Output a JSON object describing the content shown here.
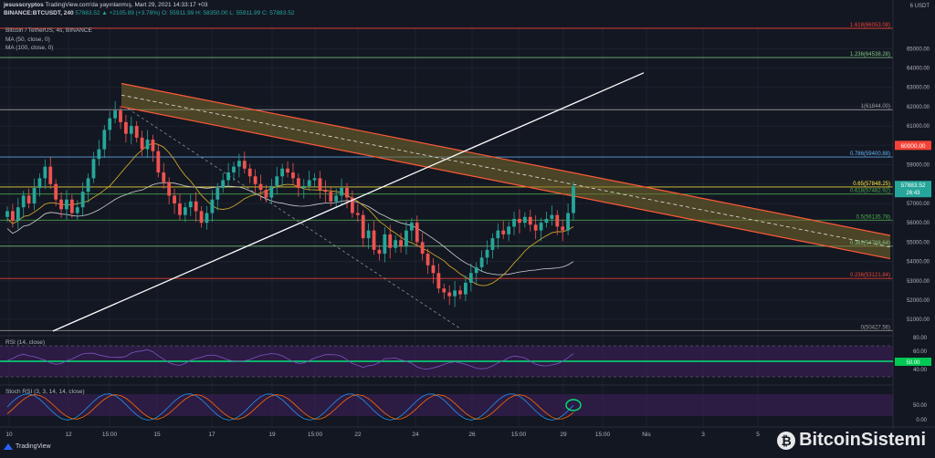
{
  "header": {
    "user": "jesusscryptos",
    "published": "TradingView.com'da yayınlanmış, Mart 29, 2021 14:33:17 +03",
    "symbol": "BINANCE:BTCUSDT, 240",
    "close_change": "57883.52 ▲ +2105.89 (+3.78%)",
    "ohlc": "O: 55911.99  H: 58350.00  L: 55911.99  C: 57883.52"
  },
  "legend": {
    "title": "Bitcoin / TetherUS, 4s, BINANCE",
    "ma50": "MA (50, close, 0)",
    "ma100": "MA (100, close, 0)"
  },
  "price_axis": {
    "unit": "USDT",
    "ticks": [
      "65000.00",
      "64000.00",
      "63000.00",
      "62000.00",
      "61000.00",
      "60000.00",
      "59000.00",
      "58000.00",
      "57000.00",
      "56000.00",
      "55000.00",
      "54000.00",
      "53000.00",
      "52000.00",
      "51000.00"
    ],
    "top_label": "6 USDT"
  },
  "price_badges": {
    "level": "60000.00",
    "current": "57883.52",
    "countdown": "26:43"
  },
  "fib_labels": {
    "f1618": "1.618(66053.08)",
    "f1236": "1.236(64538.28)",
    "f1": "1(61844.00)",
    "f786": "0.786(59400.88)",
    "f65": "0.65(57848.25)",
    "f618": "0.618(57482.92)",
    "f5": "0.5(56135.78)",
    "f382": "0.382(54788.64)",
    "f236": "0.236(53121.84)",
    "f0": "0(50427.56)"
  },
  "rsi": {
    "label": "RSI (14, close)",
    "ticks": [
      "80.00",
      "60.00",
      "40.00"
    ],
    "badge": "50.00"
  },
  "stoch": {
    "label": "Stoch RSI (3, 3, 14, 14, close)",
    "ticks": [
      "50.00",
      "0.00"
    ]
  },
  "time_axis": [
    "10",
    "12",
    "15:00",
    "15",
    "17",
    "19",
    "15:00",
    "22",
    "24",
    "26",
    "15:00",
    "29",
    "15:00",
    "Nis",
    "3",
    "5"
  ],
  "footer": {
    "logo_text": "TradingView",
    "watermark": "BitcoinSistemi"
  },
  "colors": {
    "bg": "#131722",
    "up": "#26a69a",
    "down": "#ef5350",
    "channel_fill": "#7a6a2a",
    "channel_edge": "#ff5a36",
    "ma50": "#c9a227",
    "ma100": "#d0d0d0",
    "rsi_zone": "#3d1e5a",
    "rsi_line": "#7e57c2"
  },
  "chart_data": {
    "type": "candlestick",
    "title": "Bitcoin / TetherUS, 4s, BINANCE",
    "ylim": [
      50300,
      66100
    ],
    "fib_levels": [
      {
        "ratio": 1.618,
        "price": 66053.08,
        "color": "#f44336"
      },
      {
        "ratio": 1.236,
        "price": 64538.28,
        "color": "#81c784"
      },
      {
        "ratio": 1,
        "price": 61844.0,
        "color": "#9e9e9e"
      },
      {
        "ratio": 0.786,
        "price": 59400.88,
        "color": "#64b5f6"
      },
      {
        "ratio": 0.65,
        "price": 57848.25,
        "color": "#ffeb3b"
      },
      {
        "ratio": 0.618,
        "price": 57482.92,
        "color": "#4caf50"
      },
      {
        "ratio": 0.5,
        "price": 56135.78,
        "color": "#4caf50"
      },
      {
        "ratio": 0.382,
        "price": 54788.64,
        "color": "#81c784"
      },
      {
        "ratio": 0.236,
        "price": 53121.84,
        "color": "#f44336"
      },
      {
        "ratio": 0,
        "price": 50427.56,
        "color": "#9e9e9e"
      }
    ],
    "close_path": [
      56600,
      56100,
      56800,
      57400,
      57000,
      57800,
      58300,
      58900,
      58000,
      57200,
      56700,
      57200,
      56500,
      56800,
      57600,
      58300,
      59300,
      59800,
      60800,
      61400,
      61800,
      61200,
      60600,
      61000,
      60400,
      59800,
      60300,
      59700,
      58600,
      58100,
      57400,
      57000,
      56400,
      56800,
      57100,
      56600,
      56000,
      56500,
      57200,
      57800,
      58200,
      58600,
      58900,
      59200,
      58800,
      58400,
      58000,
      57700,
      57300,
      57900,
      58400,
      58800,
      58600,
      58300,
      57800,
      57900,
      58200,
      58300,
      57700,
      57600,
      57100,
      57400,
      57800,
      57300,
      56500,
      56400,
      55200,
      55600,
      54600,
      54400,
      55400,
      54700,
      55100,
      54800,
      55600,
      56000,
      55000,
      54400,
      53800,
      53400,
      52600,
      52400,
      52200,
      52500,
      52300,
      52900,
      53400,
      53700,
      54200,
      54600,
      55200,
      55600,
      55400,
      55800,
      56200,
      56000,
      56300,
      55900,
      55600,
      56000,
      56200,
      56400,
      55800,
      55600,
      56500,
      57883
    ]
  }
}
